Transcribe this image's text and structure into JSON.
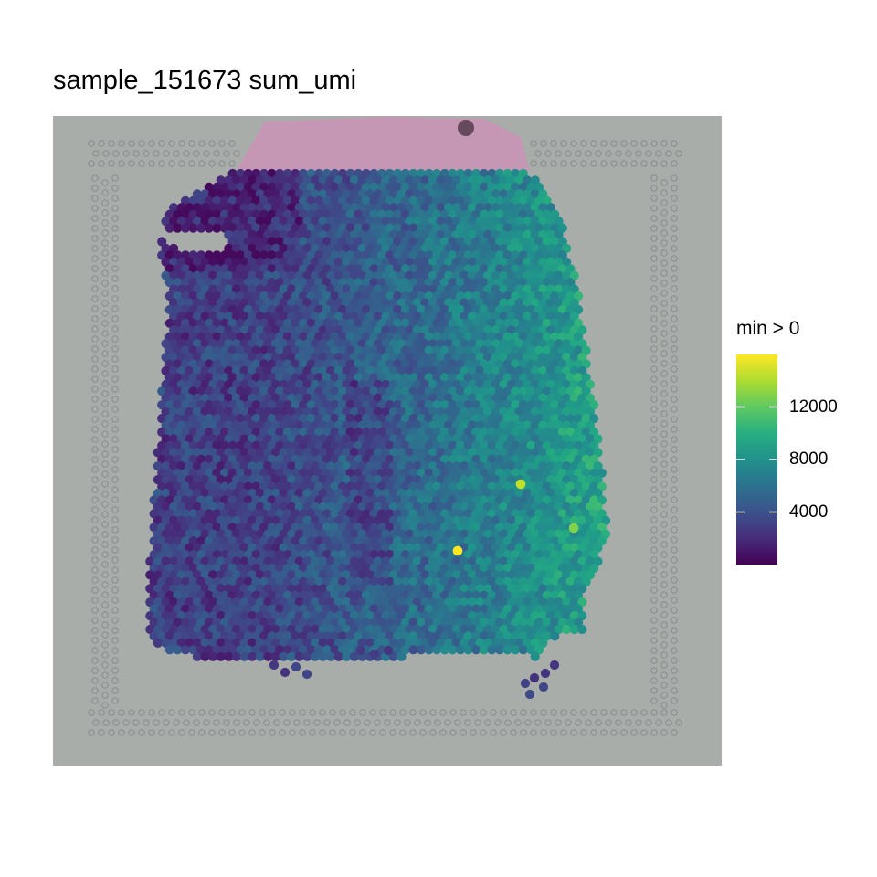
{
  "title": "sample_151673 sum_umi",
  "chart_data": {
    "type": "heatmap",
    "subtype": "spatial spot plot over tissue histology image",
    "title": "sample_151673 sum_umi",
    "value_variable": "sum_umi",
    "colormap": "viridis",
    "legend": {
      "title": "min > 0",
      "placement": "right",
      "range": [
        0,
        16000
      ],
      "ticks": [
        4000,
        8000,
        12000
      ],
      "tick_labels": [
        "4000",
        "8000",
        "12000"
      ]
    },
    "background_image": "tissue H&E section with fiducial spot frame",
    "value_gradient": {
      "low_region": "upper-left and left tissue",
      "high_region": "right side of tissue",
      "left_mean": 3000,
      "right_mean": 9500
    },
    "notable_high_spots": [
      14500,
      16000,
      13000
    ]
  },
  "colors": {
    "viridis_low": "#440154",
    "viridis_mid": "#21918c",
    "viridis_high": "#fde725",
    "slide_background": "#a9adaa",
    "tissue_pink": "#c994b6"
  }
}
